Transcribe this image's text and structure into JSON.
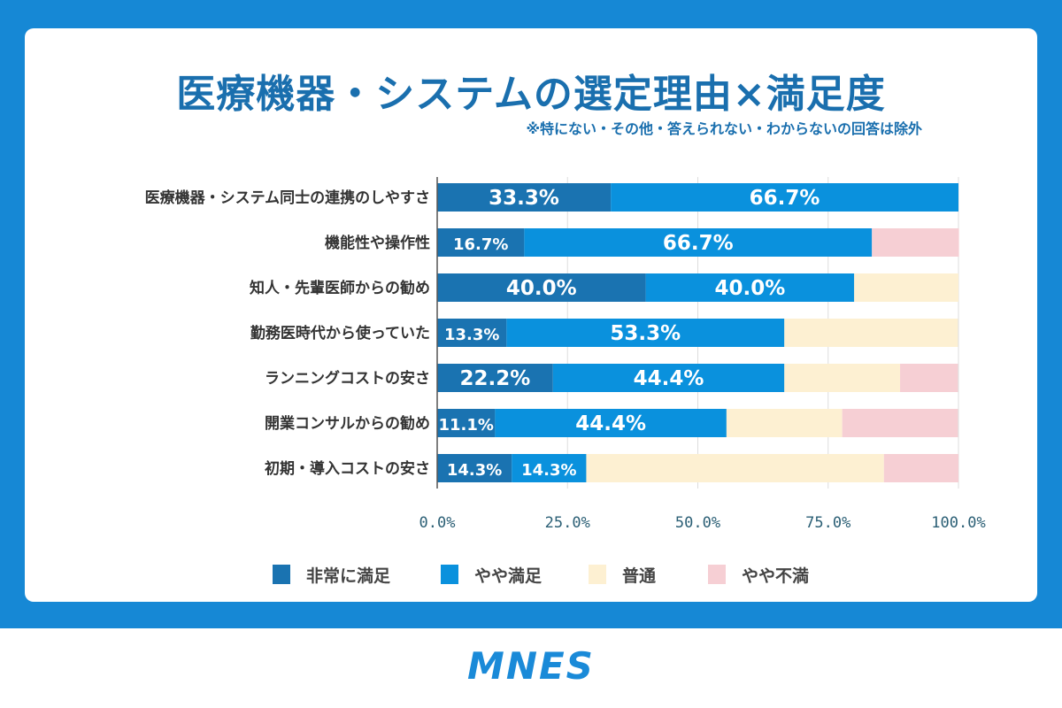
{
  "title": "医療機器・システムの選定理由×満足度",
  "subtitle": "※特にない・その他・答えられない・わからないの回答は除外",
  "logo": "MNES",
  "chart_data": {
    "type": "bar",
    "orientation": "horizontal",
    "stacked": true,
    "title": "医療機器・システムの選定理由×満足度",
    "categories": [
      "医療機器・システム同士の連携のしやすさ",
      "機能性や操作性",
      "知人・先輩医師からの勧め",
      "勤務医時代から使っていた",
      "ランニングコストの安さ",
      "開業コンサルからの勧め",
      "初期・導入コストの安さ"
    ],
    "series": [
      {
        "name": "非常に満足",
        "color": "#1a73b1",
        "values": [
          33.3,
          16.7,
          40.0,
          13.3,
          22.2,
          11.1,
          14.3
        ]
      },
      {
        "name": "やや満足",
        "color": "#0a91dd",
        "values": [
          66.7,
          66.7,
          40.0,
          53.3,
          44.4,
          44.4,
          14.3
        ]
      },
      {
        "name": "普通",
        "color": "#fdf0d2",
        "values": [
          0,
          0,
          20.0,
          33.3,
          22.2,
          22.2,
          57.1
        ]
      },
      {
        "name": "やや不満",
        "color": "#f6cfd4",
        "values": [
          0,
          16.7,
          0,
          0,
          11.1,
          22.2,
          14.3
        ]
      }
    ],
    "labeled_series": [
      "非常に満足",
      "やや満足"
    ],
    "xlim": [
      0,
      100
    ],
    "xticks": [
      "0.0%",
      "25.0%",
      "50.0%",
      "75.0%",
      "100.0%"
    ],
    "grid": true,
    "legend": "bottom"
  }
}
